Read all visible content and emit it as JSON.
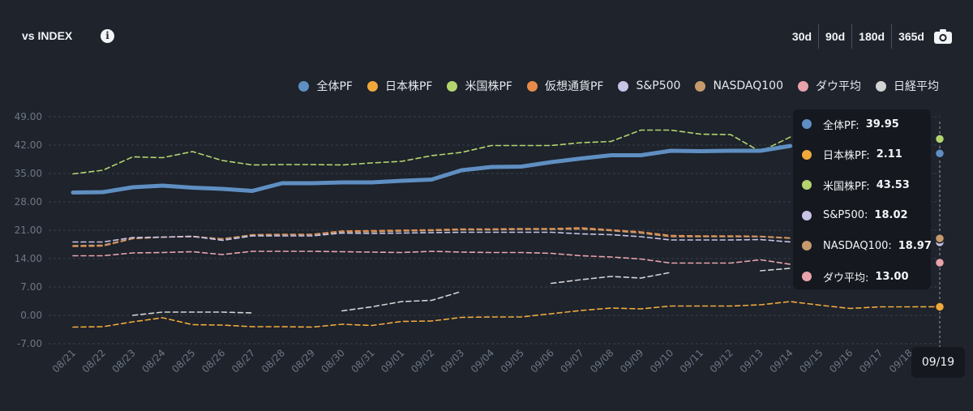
{
  "header": {
    "title": "vs INDEX",
    "ranges": [
      "30d",
      "90d",
      "180d",
      "365d"
    ]
  },
  "chart_data": {
    "type": "line",
    "x": [
      "08/21",
      "08/22",
      "08/23",
      "08/24",
      "08/25",
      "08/26",
      "08/27",
      "08/28",
      "08/29",
      "08/30",
      "08/31",
      "09/01",
      "09/02",
      "09/03",
      "09/04",
      "09/05",
      "09/06",
      "09/07",
      "09/08",
      "09/09",
      "09/10",
      "09/11",
      "09/12",
      "09/13",
      "09/14",
      "09/15",
      "09/16",
      "09/17",
      "09/18",
      "09/19"
    ],
    "ylim": [
      -7,
      49
    ],
    "yticks": [
      "49.00",
      "42.00",
      "35.00",
      "28.00",
      "21.00",
      "14.00",
      "7.00",
      "0.00",
      "-7.00"
    ],
    "ytick_values": [
      49,
      42,
      35,
      28,
      21,
      14,
      7,
      0,
      -7
    ],
    "grid": true,
    "legend_position": "top-right",
    "series": [
      {
        "name": "全体PF",
        "color": "#5f8fc2",
        "style": "solid",
        "values": [
          30.3,
          30.4,
          31.6,
          32.0,
          31.5,
          31.2,
          30.7,
          32.6,
          32.6,
          32.8,
          32.8,
          33.2,
          33.5,
          35.8,
          36.6,
          36.7,
          37.8,
          38.7,
          39.5,
          39.5,
          40.6,
          40.5,
          40.6,
          40.6,
          41.8,
          null,
          null,
          null,
          null,
          39.95
        ]
      },
      {
        "name": "日本株PF",
        "color": "#f0a93b",
        "style": "dashed",
        "values": [
          -2.9,
          -2.8,
          -1.6,
          -0.6,
          -2.3,
          -2.4,
          -2.8,
          -2.8,
          -2.9,
          -2.2,
          -2.5,
          -1.5,
          -1.4,
          -0.5,
          -0.4,
          -0.4,
          0.4,
          1.2,
          1.8,
          1.6,
          2.3,
          2.3,
          2.3,
          2.6,
          3.4,
          2.5,
          1.7,
          2.1,
          2.1,
          2.11
        ]
      },
      {
        "name": "米国株PF",
        "color": "#b4d46e",
        "style": "dashed",
        "values": [
          34.9,
          35.8,
          39.1,
          38.9,
          40.4,
          38.2,
          37.1,
          37.2,
          37.2,
          37.1,
          37.6,
          38.0,
          39.4,
          40.2,
          41.9,
          41.9,
          41.9,
          42.6,
          42.9,
          45.7,
          45.7,
          44.7,
          44.6,
          40.4,
          44.0,
          null,
          null,
          null,
          null,
          43.53
        ]
      },
      {
        "name": "仮想通貨PF",
        "color": "#e98a4a",
        "style": "dashed",
        "values": [
          17.0,
          17.1,
          18.9,
          19.3,
          19.5,
          18.8,
          19.9,
          20.0,
          20.0,
          20.8,
          20.9,
          21.0,
          21.1,
          21.3,
          21.3,
          21.4,
          21.4,
          21.6,
          21.1,
          20.6,
          19.7,
          19.6,
          19.6,
          19.5,
          19.1,
          null,
          null,
          null,
          null,
          null
        ]
      },
      {
        "name": "S&P500",
        "color": "#c9c3e6",
        "style": "dashed",
        "values": [
          18.1,
          18.1,
          19.2,
          19.3,
          19.5,
          18.5,
          19.6,
          19.6,
          19.6,
          20.3,
          20.2,
          20.3,
          20.4,
          20.5,
          20.5,
          20.5,
          20.5,
          20.1,
          19.9,
          19.4,
          18.6,
          18.6,
          18.6,
          18.7,
          18.1,
          null,
          null,
          null,
          null,
          18.02
        ]
      },
      {
        "name": "NASDAQ100",
        "color": "#c79a6c",
        "style": "dashed",
        "values": [
          17.2,
          17.3,
          19.0,
          19.3,
          19.4,
          18.9,
          19.8,
          19.9,
          19.9,
          20.6,
          20.6,
          20.8,
          20.9,
          21.1,
          21.1,
          21.2,
          21.2,
          21.3,
          20.9,
          20.3,
          19.4,
          19.4,
          19.4,
          19.4,
          19.0,
          null,
          null,
          null,
          null,
          18.97
        ]
      },
      {
        "name": "ダウ平均",
        "color": "#e9a3ab",
        "style": "dashed",
        "values": [
          14.7,
          14.7,
          15.4,
          15.5,
          15.7,
          15.0,
          15.8,
          15.8,
          15.8,
          15.7,
          15.6,
          15.5,
          15.8,
          15.6,
          15.5,
          15.5,
          15.3,
          14.7,
          14.4,
          13.9,
          12.9,
          12.9,
          12.9,
          13.7,
          12.6,
          null,
          null,
          null,
          null,
          13.0
        ]
      },
      {
        "name": "日経平均",
        "color": "#d3d3d3",
        "style": "dashed",
        "values": [
          null,
          null,
          0.0,
          0.8,
          0.8,
          0.8,
          0.6,
          null,
          null,
          1.1,
          2.1,
          3.4,
          3.7,
          5.9,
          null,
          null,
          7.9,
          8.8,
          9.6,
          9.2,
          10.6,
          null,
          null,
          11.0,
          11.6,
          null,
          null,
          null,
          null,
          null
        ]
      }
    ]
  },
  "tooltip": {
    "date": "09/19",
    "rows": [
      {
        "label": "全体PF:",
        "value": "39.95",
        "color": "#5f8fc2"
      },
      {
        "label": "日本株PF:",
        "value": "2.11",
        "color": "#f0a93b"
      },
      {
        "label": "米国株PF:",
        "value": "43.53",
        "color": "#b4d46e"
      },
      {
        "label": "S&P500:",
        "value": "18.02",
        "color": "#c9c3e6"
      },
      {
        "label": "NASDAQ100:",
        "value": "18.97",
        "color": "#c79a6c"
      },
      {
        "label": "ダウ平均:",
        "value": "13.00",
        "color": "#e9a3ab"
      }
    ]
  }
}
